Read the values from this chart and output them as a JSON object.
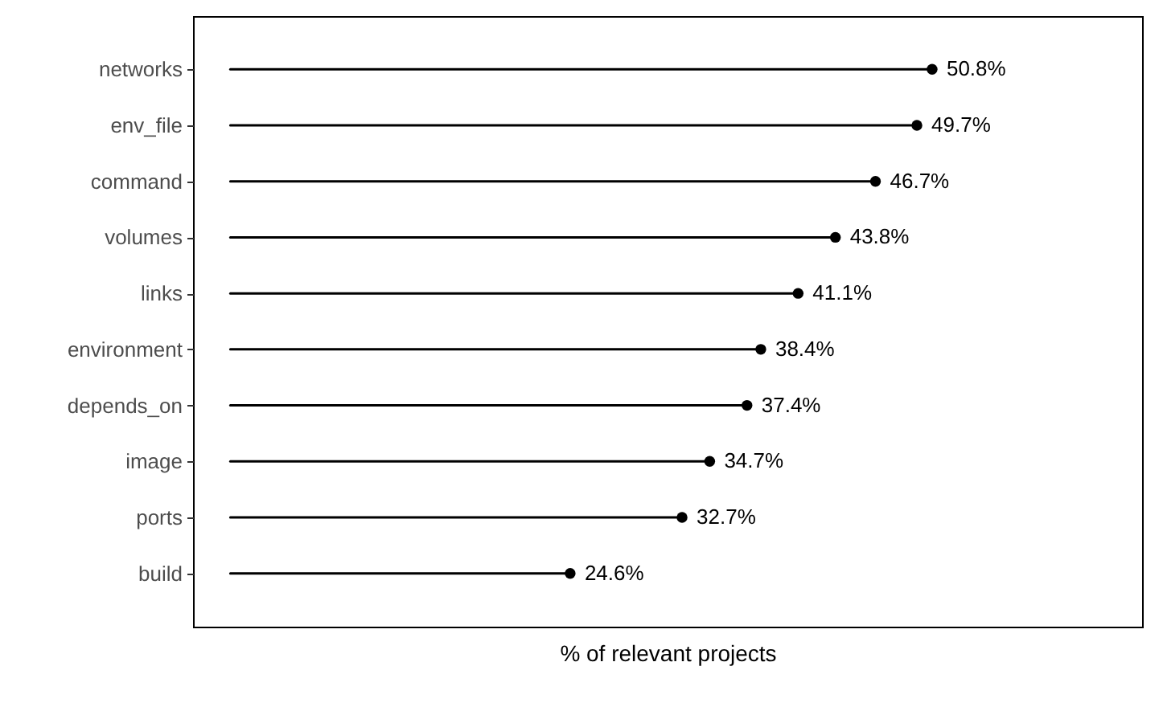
{
  "chart_data": {
    "type": "lollipop",
    "orientation": "horizontal",
    "xlabel": "% of relevant projects",
    "categories": [
      "networks",
      "env_file",
      "command",
      "volumes",
      "links",
      "environment",
      "depends_on",
      "image",
      "ports",
      "build"
    ],
    "values": [
      50.8,
      49.7,
      46.7,
      43.8,
      41.1,
      38.4,
      37.4,
      34.7,
      32.7,
      24.6
    ],
    "value_labels": [
      "50.8%",
      "49.7%",
      "46.7%",
      "43.8%",
      "41.1%",
      "38.4%",
      "37.4%",
      "34.7%",
      "32.7%",
      "24.6%"
    ],
    "color": "#000000",
    "xlim": [
      -2.7,
      66
    ],
    "tick_labels": "y"
  }
}
